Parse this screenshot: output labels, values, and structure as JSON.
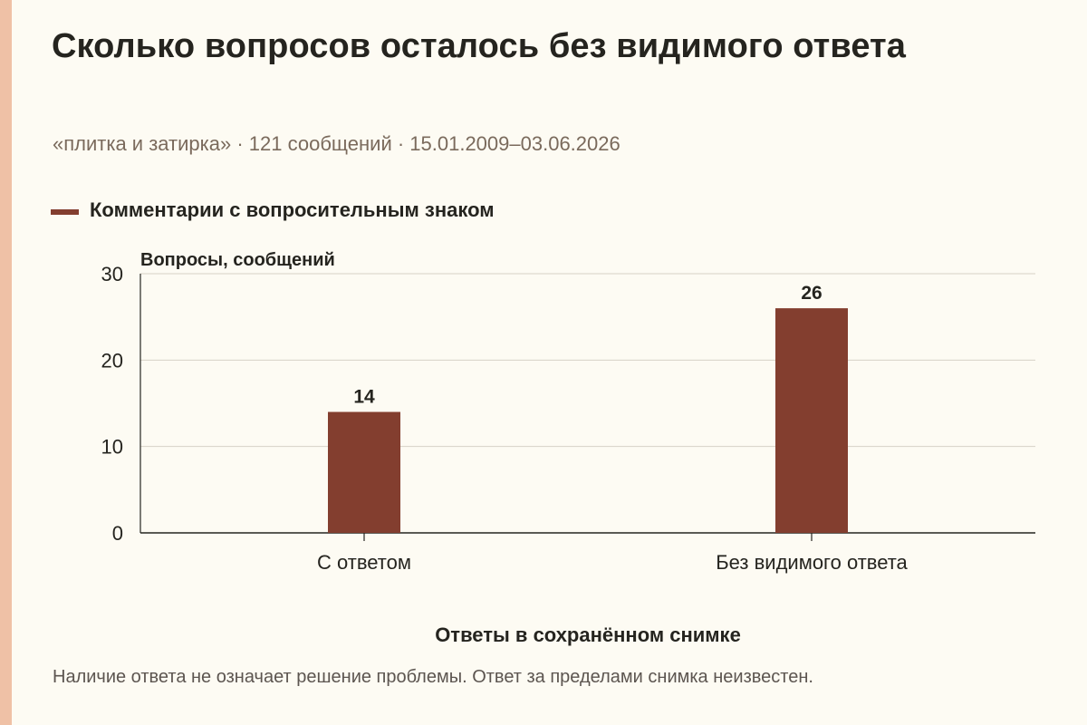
{
  "title": "Сколько вопросов осталось без видимого ответа",
  "subtitle": "«плитка и затирка» · 121 сообщений · 15.01.2009–03.06.2026",
  "footnote": "Наличие ответа не означает решение проблемы. Ответ за пределами снимка неизвестен.",
  "colors": {
    "bar": "#833e2f",
    "accent_strip": "#efc1a6",
    "background": "#fdfbf3",
    "grid": "#d6d1c6",
    "axis": "#25241f"
  },
  "chart_data": {
    "type": "bar",
    "categories": [
      "С ответом",
      "Без видимого ответа"
    ],
    "series": [
      {
        "name": "Комментарии с вопросительным знаком",
        "values": [
          14,
          26
        ]
      }
    ],
    "xlabel": "Ответы в сохранённом снимке",
    "ylabel": "Вопросы, сообщений",
    "ylim": [
      0,
      30
    ],
    "yticks": [
      0,
      10,
      20,
      30
    ],
    "data_labels": true,
    "grid": true,
    "legend": "top-left"
  }
}
